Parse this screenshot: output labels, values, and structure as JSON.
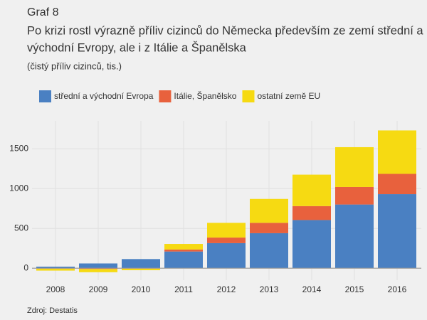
{
  "chart_data": {
    "type": "stacked-bar",
    "label": "Graf 8",
    "title": [
      "Po krizi rostl výrazně příliv cizinců do Německa především ze zemí střední a",
      "východní Evropy, ale i z Itálie a Španělska"
    ],
    "subtitle": "(čistý příliv cizinců, tis.)",
    "source": "Zdroj: Destatis",
    "categories": [
      "2008",
      "2009",
      "2010",
      "2011",
      "2012",
      "2013",
      "2014",
      "2015",
      "2016"
    ],
    "series": [
      {
        "name": "střední a východní Evropa",
        "color": "#4a80c2",
        "values": [
          20,
          60,
          115,
          210,
          315,
          440,
          605,
          800,
          930
        ]
      },
      {
        "name": "Itálie, Španělsko",
        "color": "#e8613d",
        "values": [
          -5,
          -10,
          -5,
          25,
          70,
          130,
          175,
          220,
          255
        ]
      },
      {
        "name": "ostatní země EU",
        "color": "#f6da12",
        "values": [
          -25,
          -40,
          -20,
          70,
          185,
          300,
          395,
          500,
          545
        ]
      }
    ],
    "ylim": [
      -150,
      1850
    ],
    "yticks": [
      0,
      500,
      1000,
      1500
    ],
    "grid": true
  }
}
